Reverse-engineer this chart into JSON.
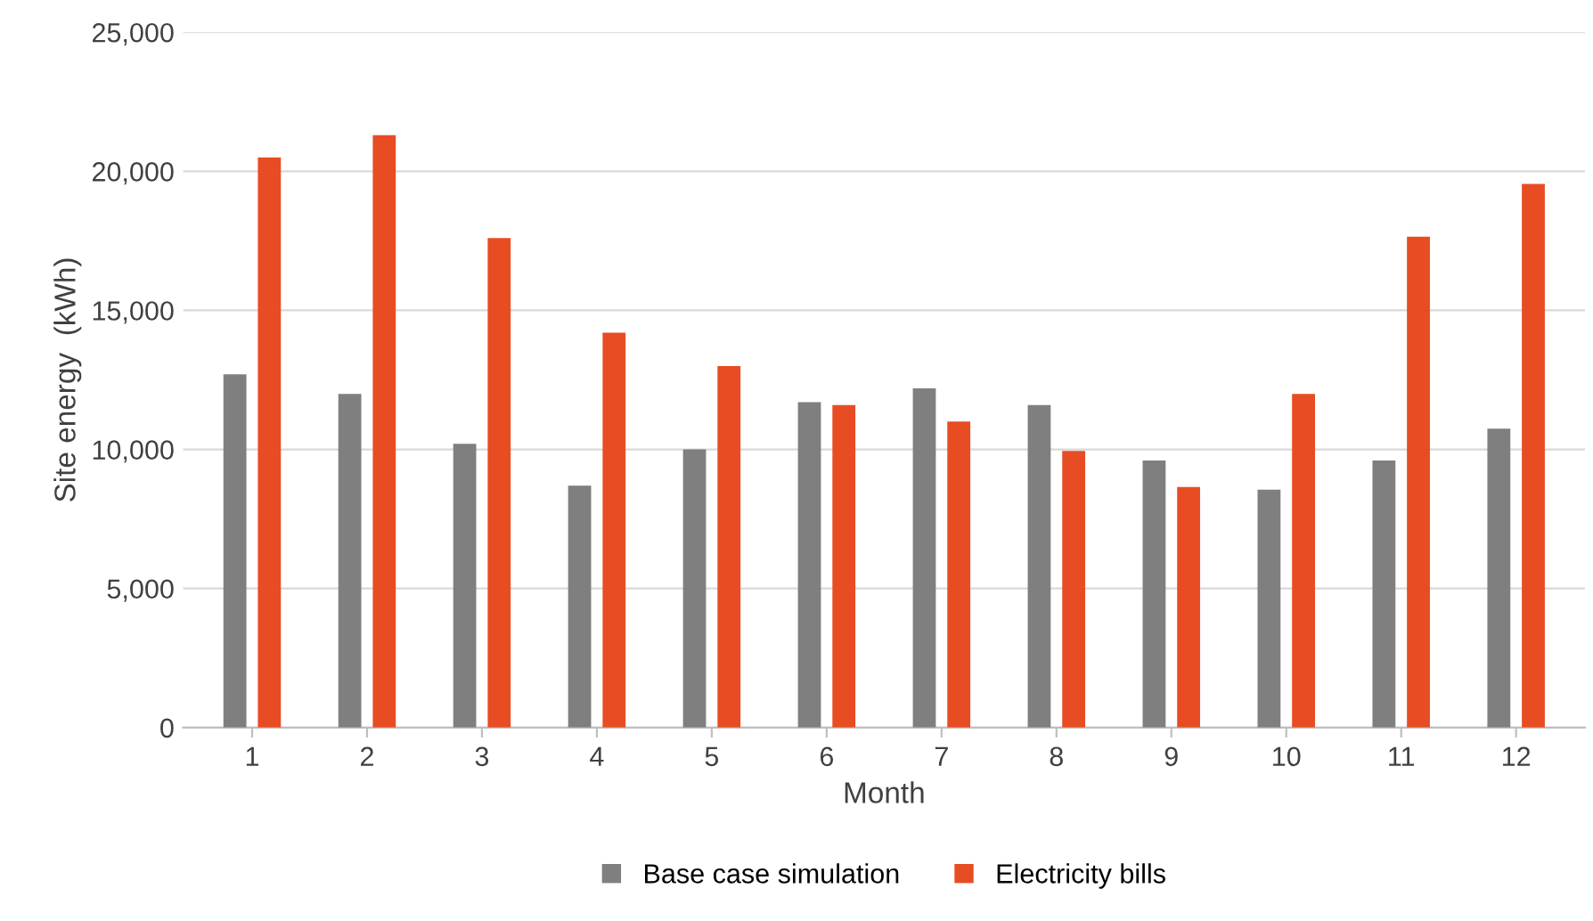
{
  "chart_data": {
    "type": "bar",
    "xlabel": "Month",
    "ylabel": "Site energy  (kWh)",
    "categories": [
      "1",
      "2",
      "3",
      "4",
      "5",
      "6",
      "7",
      "8",
      "9",
      "10",
      "11",
      "12"
    ],
    "series": [
      {
        "name": "Base case simulation",
        "color": "#7f7f7f",
        "values": [
          12700,
          12000,
          10200,
          8700,
          10000,
          11700,
          12200,
          11600,
          9600,
          8550,
          9600,
          10750
        ]
      },
      {
        "name": "Electricity bills",
        "color": "#e84c22",
        "values": [
          20500,
          21300,
          17600,
          14200,
          13000,
          11600,
          11000,
          9950,
          8650,
          12000,
          17650,
          19550
        ]
      }
    ],
    "ylim": [
      0,
      25000
    ],
    "yticks": [
      {
        "value": 0,
        "label": "0"
      },
      {
        "value": 5000,
        "label": "5,000"
      },
      {
        "value": 10000,
        "label": "10,000"
      },
      {
        "value": 15000,
        "label": "15,000"
      },
      {
        "value": 20000,
        "label": "20,000"
      },
      {
        "value": 25000,
        "label": "25,000"
      }
    ],
    "grid": "y",
    "legend": "bottom"
  }
}
